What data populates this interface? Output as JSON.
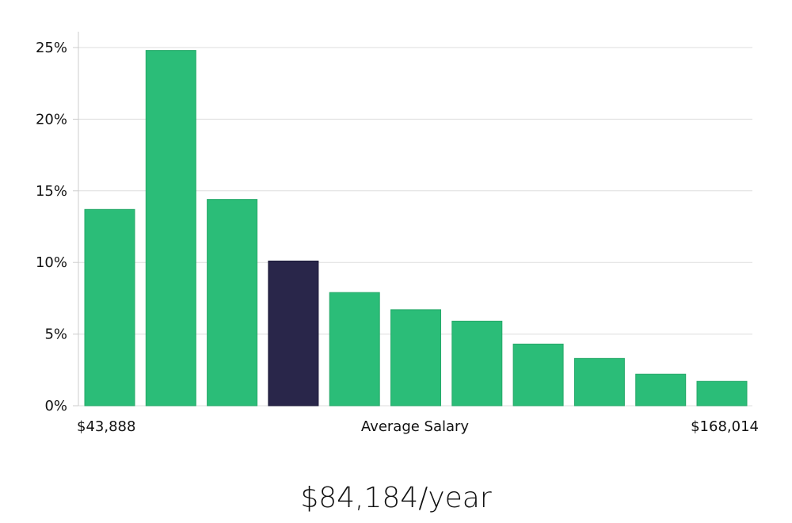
{
  "chart_data": {
    "type": "bar",
    "values": [
      13.7,
      24.8,
      14.4,
      10.1,
      7.9,
      6.7,
      5.9,
      4.3,
      3.3,
      2.2,
      1.7
    ],
    "highlight_index": 3,
    "ylim": [
      0,
      26
    ],
    "yticks": [
      0,
      5,
      10,
      15,
      20,
      25
    ],
    "ytick_labels": [
      "0%",
      "5%",
      "10%",
      "15%",
      "20%",
      "25%"
    ],
    "xlabel": "Average Salary",
    "x_min_label": "$43,888",
    "x_max_label": "$168,014",
    "grid": true,
    "colors": {
      "bar": "#2bbd78",
      "highlight": "#29264a",
      "grid": "#dddddd",
      "axis": "#cccccc"
    }
  },
  "summary": {
    "salary_text": "$84,184/year"
  }
}
